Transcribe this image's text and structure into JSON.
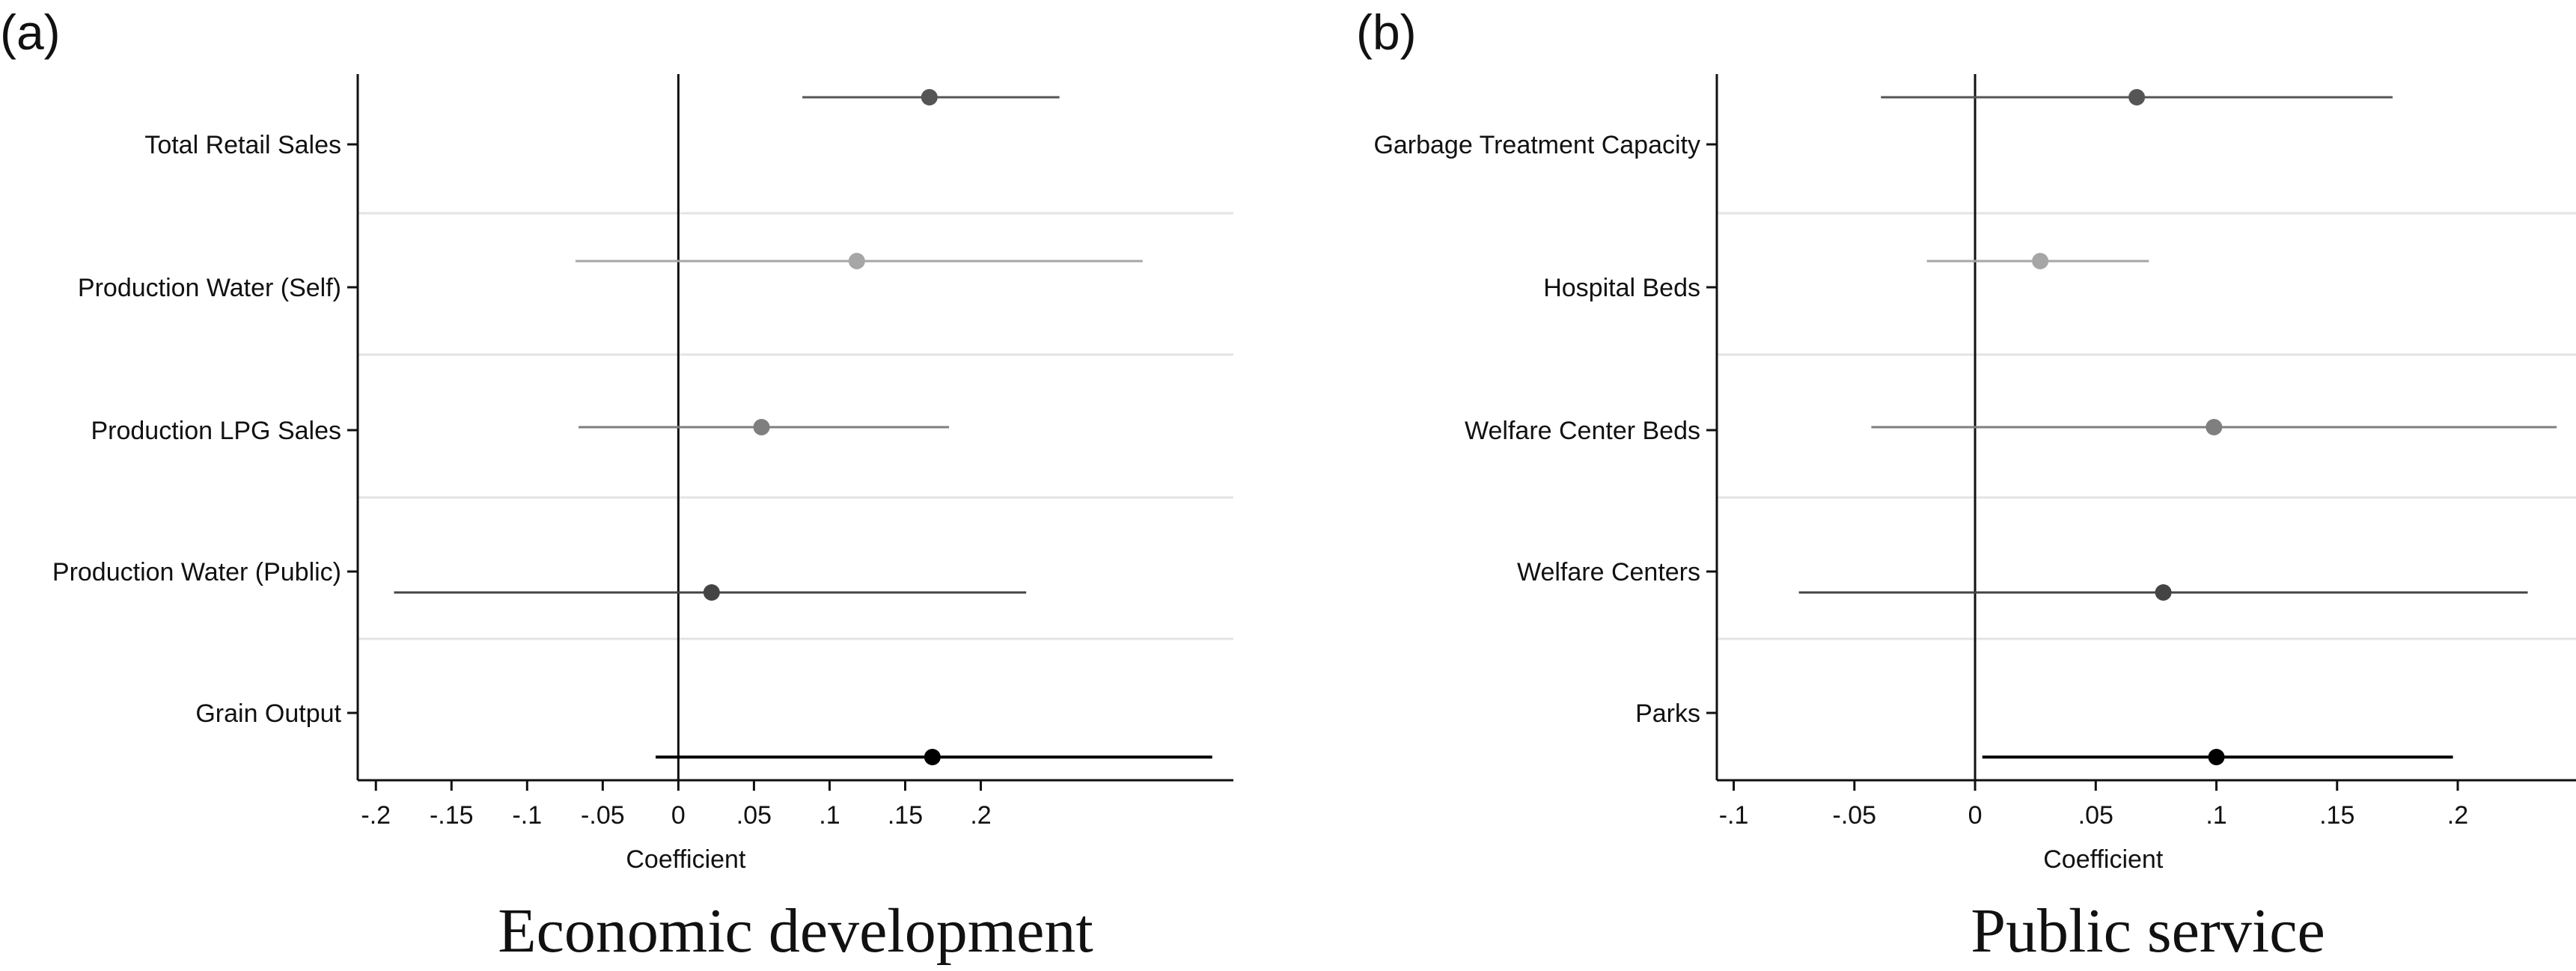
{
  "chart_data": [
    {
      "type": "scatter",
      "panel_label": "(a)",
      "title": "Economic development",
      "xlabel": "Coefficient",
      "ylabel": "",
      "xlim": [
        -0.212,
        0.367
      ],
      "xticks": [
        -0.2,
        -0.15,
        -0.1,
        -0.05,
        0,
        0.05,
        0.1,
        0.15,
        0.2
      ],
      "xtick_labels": [
        "-.2",
        "-.15",
        "-.1",
        "-.05",
        "0",
        ".05",
        ".1",
        ".15",
        ".2"
      ],
      "reference_line": 0,
      "grid": "horizontal separators",
      "categories": [
        "Total Retail Sales",
        "Production Water (Self)",
        "Production LPG Sales",
        "Production Water (Public)",
        "Grain Output"
      ],
      "estimates": [
        0.166,
        0.118,
        0.055,
        0.022,
        0.168
      ],
      "ci_low": [
        0.082,
        -0.068,
        -0.066,
        -0.188,
        -0.015
      ],
      "ci_high": [
        0.252,
        0.307,
        0.179,
        0.23,
        0.353
      ],
      "colors": [
        "#555555",
        "#a6a6a6",
        "#7f7f7f",
        "#444444",
        "#000000"
      ]
    },
    {
      "type": "scatter",
      "panel_label": "(b)",
      "title": "Public service",
      "xlabel": "Coefficient",
      "ylabel": "",
      "xlim": [
        -0.107,
        0.249
      ],
      "xticks": [
        -0.1,
        -0.05,
        0,
        0.05,
        0.1,
        0.15,
        0.2
      ],
      "xtick_labels": [
        "-.1",
        "-.05",
        "0",
        ".05",
        ".1",
        ".15",
        ".2"
      ],
      "reference_line": 0,
      "grid": "horizontal separators",
      "categories": [
        "Garbage Treatment Capacity",
        "Hospital Beds",
        "Welfare Center Beds",
        "Welfare Centers",
        "Parks"
      ],
      "estimates": [
        0.067,
        0.027,
        0.099,
        0.078,
        0.1
      ],
      "ci_low": [
        -0.039,
        -0.02,
        -0.043,
        -0.073,
        0.003
      ],
      "ci_high": [
        0.173,
        0.072,
        0.241,
        0.229,
        0.198
      ],
      "colors": [
        "#555555",
        "#a6a6a6",
        "#7f7f7f",
        "#444444",
        "#000000"
      ]
    }
  ]
}
